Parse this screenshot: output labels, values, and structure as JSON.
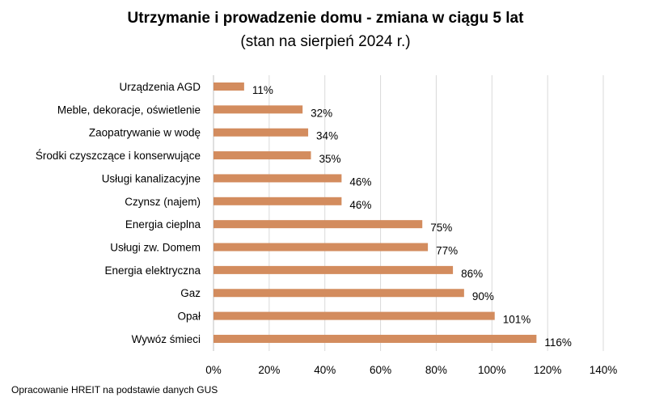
{
  "chart_data": {
    "type": "bar",
    "orientation": "horizontal",
    "title": "Utrzymanie i prowadzenie domu - zmiana w ciągu 5 lat",
    "subtitle": "(stan na sierpień 2024 r.)",
    "categories": [
      "Urządzenia AGD",
      "Meble, dekoracje, oświetlenie",
      "Zaopatrywanie w wodę",
      "Środki czyszczące i konserwujące",
      "Usługi kanalizacyjne",
      "Czynsz (najem)",
      "Energia cieplna",
      "Usługi zw. Domem",
      "Energia elektryczna",
      "Gaz",
      "Opał",
      "Wywóz śmieci"
    ],
    "values": [
      11,
      32,
      34,
      35,
      46,
      46,
      75,
      77,
      86,
      90,
      101,
      116
    ],
    "data_labels": [
      "11%",
      "32%",
      "34%",
      "35%",
      "46%",
      "46%",
      "75%",
      "77%",
      "86%",
      "90%",
      "101%",
      "116%"
    ],
    "xlim": [
      0,
      140
    ],
    "x_ticks": [
      "0%",
      "20%",
      "40%",
      "60%",
      "80%",
      "100%",
      "120%",
      "140%"
    ],
    "grid": true,
    "bar_color": "#D38C5E",
    "grid_color": "#D9D9D9"
  },
  "source": "Opracowanie HREIT na podstawie danych GUS"
}
